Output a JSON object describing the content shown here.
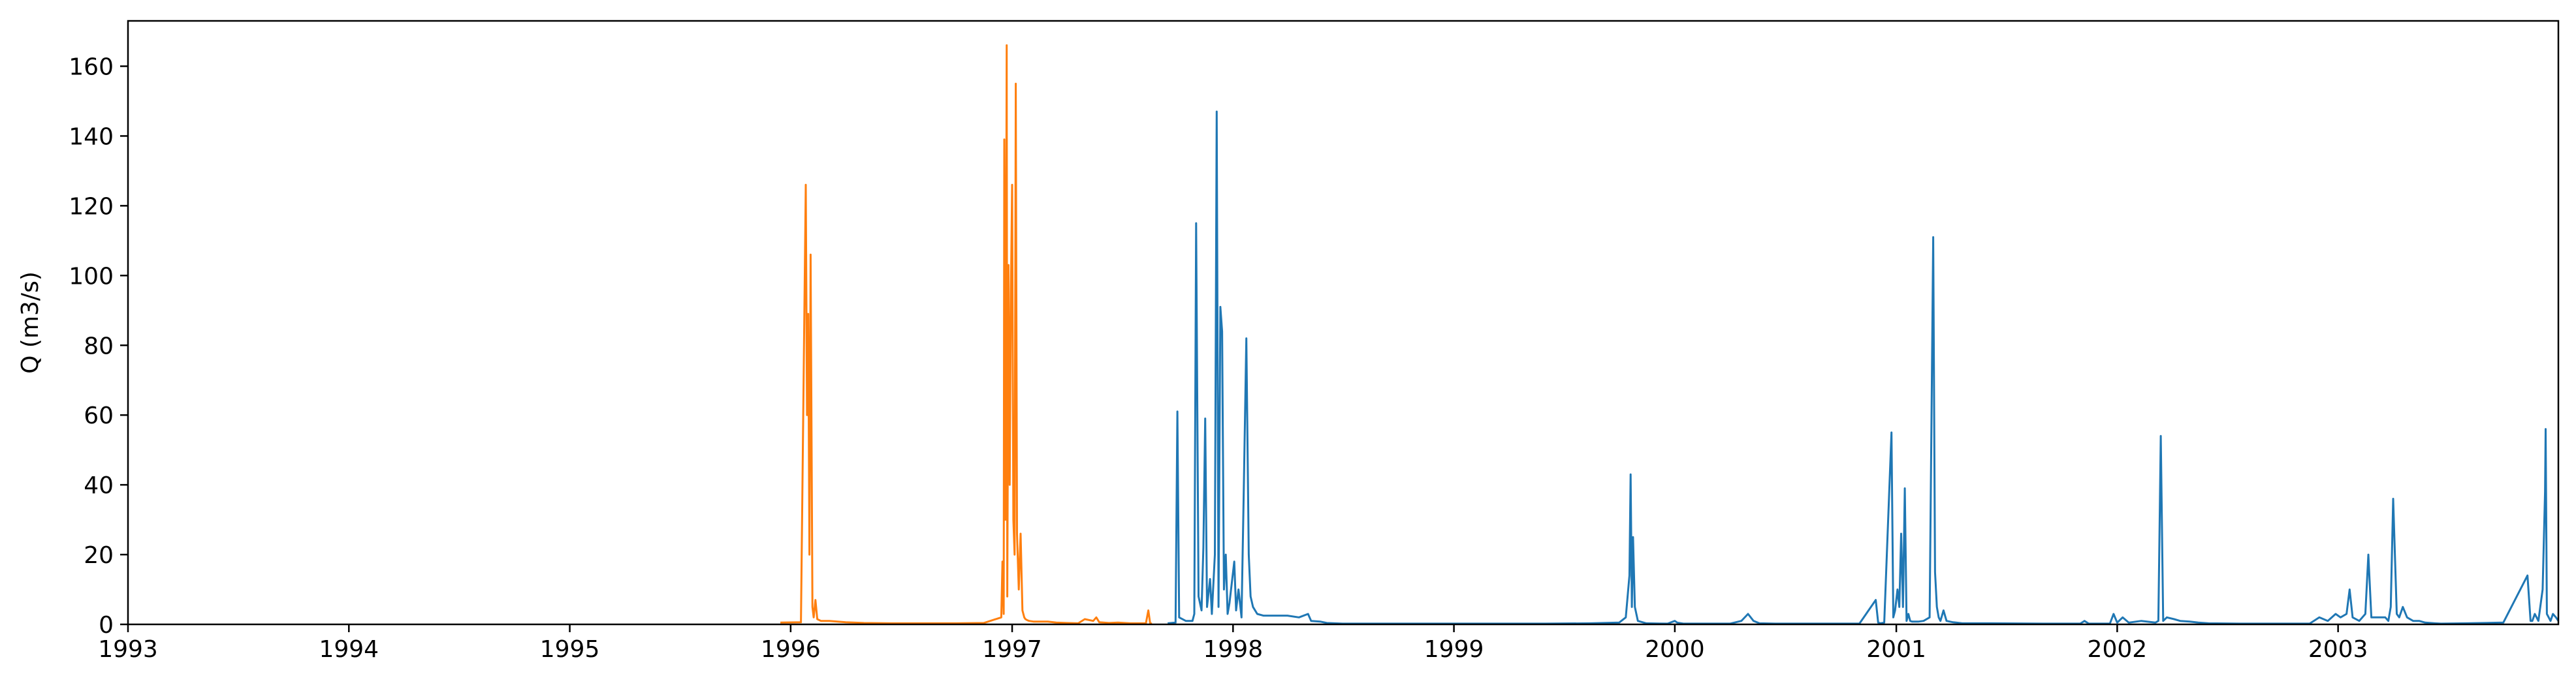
{
  "chart_data": {
    "type": "line",
    "title": "",
    "xlabel": "",
    "ylabel": "Q (m3/s)",
    "xlim": [
      "1993-01-01",
      "2003-12-31"
    ],
    "ylim": [
      0,
      173
    ],
    "x_ticks": [
      "1993-01-01",
      "1994-01-01",
      "1995-01-01",
      "1996-01-01",
      "1997-01-01",
      "1998-01-01",
      "1999-01-01",
      "2000-01-01",
      "2001-01-01",
      "2002-01-01",
      "2003-01-01"
    ],
    "x_tick_labels": [
      "1993",
      "1994",
      "1995",
      "1996",
      "1997",
      "1998",
      "1999",
      "2000",
      "2001",
      "2002",
      "2003"
    ],
    "y_ticks": [
      0,
      20,
      40,
      60,
      80,
      100,
      120,
      140,
      160
    ],
    "grid": false,
    "legend": "none",
    "series": [
      {
        "color": "#ff7f0e",
        "x": [
          "1995-12-15",
          "1996-01-18",
          "1996-01-26",
          "1996-01-28",
          "1996-01-30",
          "1996-02-01",
          "1996-02-03",
          "1996-02-06",
          "1996-02-08",
          "1996-02-11",
          "1996-02-14",
          "1996-02-20",
          "1996-03-05",
          "1996-04-01",
          "1996-05-01",
          "1996-06-15",
          "1996-08-01",
          "1996-10-01",
          "1996-11-15",
          "1996-12-14",
          "1996-12-16",
          "1996-12-18",
          "1996-12-19",
          "1996-12-21",
          "1996-12-23",
          "1996-12-24",
          "1996-12-26",
          "1996-12-28",
          "1996-12-30",
          "1997-01-01",
          "1997-01-03",
          "1997-01-05",
          "1997-01-07",
          "1997-01-09",
          "1997-01-12",
          "1997-01-15",
          "1997-01-18",
          "1997-01-21",
          "1997-01-23",
          "1997-01-26",
          "1997-01-29",
          "1997-02-05",
          "1997-02-15",
          "1997-03-01",
          "1997-03-15",
          "1997-04-01",
          "1997-04-20",
          "1997-05-01",
          "1997-05-15",
          "1997-05-20",
          "1997-05-25",
          "1997-06-10",
          "1997-06-25",
          "1997-07-15",
          "1997-08-10",
          "1997-08-14",
          "1997-08-17",
          "1997-08-20"
        ],
        "y": [
          0.5,
          0.6,
          126,
          60,
          89,
          20,
          106,
          5,
          2,
          7,
          1.5,
          1,
          1,
          0.6,
          0.4,
          0.3,
          0.3,
          0.3,
          0.4,
          2,
          18,
          3,
          139,
          30,
          166,
          8,
          103,
          40,
          96,
          126,
          30,
          20,
          155,
          26,
          10,
          26,
          4,
          2,
          1.5,
          1.2,
          1,
          0.8,
          0.8,
          0.8,
          0.5,
          0.4,
          0.3,
          1.5,
          1,
          2,
          0.6,
          0.4,
          0.5,
          0.3,
          0.3,
          4,
          0.3,
          0.2
        ]
      },
      {
        "color": "#1f77b4",
        "x": [
          "1997-09-15",
          "1997-09-28",
          "1997-10-01",
          "1997-10-04",
          "1997-10-15",
          "1997-10-26",
          "1997-10-29",
          "1997-11-01",
          "1997-11-05",
          "1997-11-10",
          "1997-11-13",
          "1997-11-16",
          "1997-11-19",
          "1997-11-24",
          "1997-11-27",
          "1997-12-02",
          "1997-12-05",
          "1997-12-08",
          "1997-12-11",
          "1997-12-14",
          "1997-12-17",
          "1997-12-20",
          "1997-12-23",
          "1997-12-26",
          "1998-01-03",
          "1998-01-06",
          "1998-01-10",
          "1998-01-15",
          "1998-01-19",
          "1998-01-23",
          "1998-01-27",
          "1998-01-30",
          "1998-02-03",
          "1998-02-10",
          "1998-02-20",
          "1998-03-01",
          "1998-04-01",
          "1998-04-20",
          "1998-05-05",
          "1998-05-10",
          "1998-05-25",
          "1998-06-05",
          "1998-07-01",
          "1998-09-01",
          "1998-11-01",
          "1999-01-01",
          "1999-03-01",
          "1999-06-01",
          "1999-08-15",
          "1999-10-01",
          "1999-10-12",
          "1999-10-18",
          "1999-10-20",
          "1999-10-22",
          "1999-10-24",
          "1999-10-27",
          "1999-11-01",
          "1999-11-15",
          "1999-12-20",
          "2000-01-01",
          "2000-01-05",
          "2000-01-15",
          "2000-02-15",
          "2000-04-01",
          "2000-04-20",
          "2000-05-01",
          "2000-05-10",
          "2000-05-20",
          "2000-06-15",
          "2000-09-01",
          "2000-11-01",
          "2000-11-28",
          "2000-12-02",
          "2000-12-06",
          "2000-12-12",
          "2000-12-24",
          "2000-12-27",
          "2000-12-30",
          "2001-01-03",
          "2001-01-06",
          "2001-01-09",
          "2001-01-12",
          "2001-01-15",
          "2001-01-18",
          "2001-01-21",
          "2001-01-24",
          "2001-01-27",
          "2001-02-01",
          "2001-02-07",
          "2001-02-15",
          "2001-02-25",
          "2001-03-03",
          "2001-03-06",
          "2001-03-09",
          "2001-03-12",
          "2001-03-15",
          "2001-03-20",
          "2001-03-25",
          "2001-04-05",
          "2001-04-10",
          "2001-04-20",
          "2001-06-01",
          "2001-09-01",
          "2001-11-01",
          "2001-11-08",
          "2001-11-15",
          "2001-12-20",
          "2001-12-26",
          "2002-01-01",
          "2002-01-10",
          "2002-01-20",
          "2002-02-10",
          "2002-03-05",
          "2002-03-10",
          "2002-03-14",
          "2002-03-18",
          "2002-03-24",
          "2002-04-05",
          "2002-04-15",
          "2002-05-01",
          "2002-05-15",
          "2002-06-01",
          "2002-08-01",
          "2002-10-01",
          "2002-11-15",
          "2002-12-01",
          "2002-12-15",
          "2002-12-28",
          "2003-01-05",
          "2003-01-15",
          "2003-01-20",
          "2003-01-25",
          "2003-02-05",
          "2003-02-15",
          "2003-02-20",
          "2003-02-25",
          "2003-03-10",
          "2003-03-20",
          "2003-03-25",
          "2003-03-29",
          "2003-04-02",
          "2003-04-08",
          "2003-04-12",
          "2003-04-18",
          "2003-04-25",
          "2003-05-05",
          "2003-05-15",
          "2003-05-25",
          "2003-06-10",
          "2003-06-20",
          "2003-08-01",
          "2003-10-01",
          "2003-11-10",
          "2003-11-15",
          "2003-11-18",
          "2003-11-22",
          "2003-11-28",
          "2003-12-05",
          "2003-12-09",
          "2003-12-10",
          "2003-12-12",
          "2003-12-15",
          "2003-12-18",
          "2003-12-22",
          "2003-12-27",
          "2003-12-31"
        ],
        "y": [
          0.3,
          0.5,
          61,
          2,
          1,
          1,
          3,
          115,
          8,
          4,
          22,
          59,
          5,
          13,
          3,
          20,
          147,
          5,
          91,
          84,
          10,
          20,
          3,
          6,
          18,
          4,
          10,
          2,
          41,
          82,
          20,
          8,
          5,
          3,
          2.5,
          2.5,
          2.5,
          2,
          3,
          1,
          0.8,
          0.4,
          0.2,
          0.2,
          0.2,
          0.2,
          0.2,
          0.2,
          0.3,
          0.5,
          2,
          14,
          43,
          5,
          25,
          5,
          1,
          0.3,
          0.2,
          1,
          0.5,
          0.2,
          0.2,
          0.2,
          1,
          3,
          1,
          0.3,
          0.2,
          0.2,
          0.2,
          7,
          0.5,
          0.3,
          0.5,
          55,
          2,
          4,
          10,
          5,
          26,
          5,
          39,
          1,
          3,
          1,
          0.8,
          0.8,
          0.8,
          1,
          2,
          111,
          15,
          5,
          2,
          1,
          4,
          1,
          0.6,
          0.5,
          0.3,
          0.3,
          0.2,
          0.2,
          1,
          0.2,
          0.2,
          3,
          0.5,
          2,
          0.5,
          1,
          0.5,
          1,
          54,
          1,
          2,
          1.5,
          1,
          0.8,
          0.5,
          0.3,
          0.2,
          0.2,
          0.2,
          2,
          1,
          3,
          2,
          3,
          10,
          2,
          1,
          3,
          20,
          2,
          2,
          2,
          1,
          5,
          36,
          3,
          2,
          5,
          2,
          1,
          1,
          0.5,
          0.3,
          0.2,
          0.3,
          0.5,
          14,
          1,
          1,
          3,
          1,
          10,
          38,
          56,
          3,
          2,
          1,
          3,
          2,
          1
        ]
      }
    ]
  }
}
